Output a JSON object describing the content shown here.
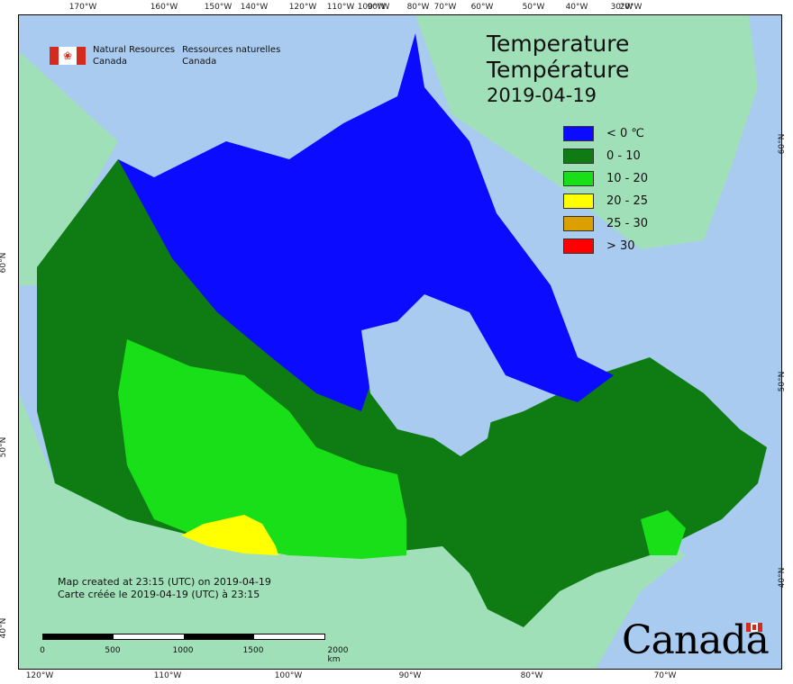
{
  "agency": {
    "en_line1": "Natural Resources",
    "en_line2": "Canada",
    "fr_line1": "Ressources naturelles",
    "fr_line2": "Canada"
  },
  "title": {
    "en": "Temperature",
    "fr": "Température",
    "date": "2019-04-19"
  },
  "legend": [
    {
      "label": "< 0 ℃",
      "color": "#0b0bff"
    },
    {
      "label": "0 - 10",
      "color": "#0e7c12"
    },
    {
      "label": "10 - 20",
      "color": "#19df19"
    },
    {
      "label": "20 - 25",
      "color": "#ffff00"
    },
    {
      "label": "25 - 30",
      "color": "#d9a000"
    },
    {
      "label": "> 30",
      "color": "#ff0000"
    }
  ],
  "credit": {
    "en": "Map created at 23:15 (UTC) on 2019-04-19",
    "fr": "Carte créée le 2019-04-19 (UTC) à 23:15"
  },
  "scale": {
    "labels": [
      "0",
      "500",
      "1000",
      "1500",
      "2000  km"
    ]
  },
  "axes": {
    "top": [
      "170°W",
      "160°W",
      "150°W",
      "140°W",
      "120°W",
      "110°W",
      "100°W",
      "90°W",
      "80°W",
      "70°W",
      "60°W",
      "50°W",
      "40°W",
      "30°W",
      "20°W"
    ],
    "bottom": [
      "120°W",
      "110°W",
      "100°W",
      "90°W",
      "80°W",
      "70°W"
    ],
    "left": [
      "60°N",
      "50°N",
      "40°N"
    ],
    "right": [
      "60°N",
      "50°N",
      "40°N"
    ]
  },
  "wordmark": "Canada",
  "colors": {
    "ocean": "#a9cbef",
    "foreign_land": "#a0e0b8"
  }
}
